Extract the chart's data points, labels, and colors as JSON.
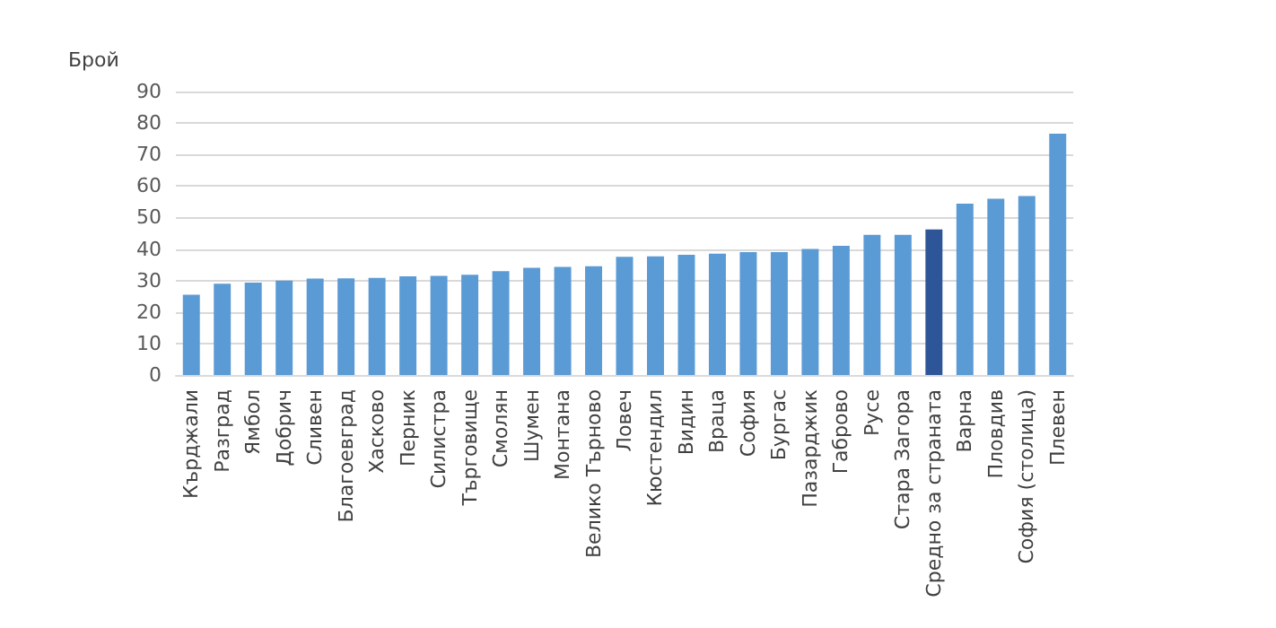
{
  "chart_data": {
    "type": "bar",
    "ylabel": "Брой",
    "categories": [
      "Кърджали",
      "Разград",
      "Ямбол",
      "Добрич",
      "Сливен",
      "Благоевград",
      "Хасково",
      "Перник",
      "Силистра",
      "Търговище",
      "Смолян",
      "Шумен",
      "Монтана",
      "Велико Търново",
      "Ловеч",
      "Кюстендил",
      "Видин",
      "Враца",
      "София",
      "Бургас",
      "Пазарджик",
      "Габрово",
      "Русе",
      "Стара Загора",
      "Средно за страната",
      "Варна",
      "Пловдив",
      "София (столица)",
      "Плевен"
    ],
    "values": [
      25.5,
      29,
      29.3,
      30,
      30.6,
      30.7,
      30.8,
      31.3,
      31.5,
      31.8,
      33,
      34,
      34.3,
      34.5,
      37.5,
      37.7,
      38.2,
      38.5,
      39,
      39,
      40,
      41,
      44.5,
      44.5,
      46.2,
      54.4,
      56,
      56.8,
      76.6
    ],
    "colors": [
      "#5b9bd5",
      "#5b9bd5",
      "#5b9bd5",
      "#5b9bd5",
      "#5b9bd5",
      "#5b9bd5",
      "#5b9bd5",
      "#5b9bd5",
      "#5b9bd5",
      "#5b9bd5",
      "#5b9bd5",
      "#5b9bd5",
      "#5b9bd5",
      "#5b9bd5",
      "#5b9bd5",
      "#5b9bd5",
      "#5b9bd5",
      "#5b9bd5",
      "#5b9bd5",
      "#5b9bd5",
      "#5b9bd5",
      "#5b9bd5",
      "#5b9bd5",
      "#5b9bd5",
      "#2e5597",
      "#5b9bd5",
      "#5b9bd5",
      "#5b9bd5",
      "#5b9bd5"
    ],
    "ylim": [
      0,
      90
    ],
    "yticks": [
      0,
      10,
      20,
      30,
      40,
      50,
      60,
      70,
      80,
      90
    ],
    "grid": "y"
  }
}
